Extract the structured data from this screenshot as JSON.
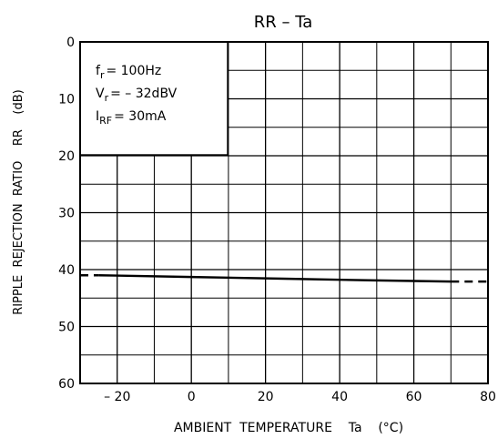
{
  "chart_data": {
    "type": "line",
    "title": "RR  –  Ta",
    "xlabel": "AMBIENT  TEMPERATURE    Ta    (°C)",
    "ylabel": "RIPPLE  REJECTION  RATIO    RR    (dB)",
    "xlim": [
      -30,
      80
    ],
    "ylim": [
      60,
      0
    ],
    "y_inverted": true,
    "grid": true,
    "x_ticks": [
      -20,
      0,
      20,
      40,
      60,
      80
    ],
    "x_tick_labels": [
      "– 20",
      "0",
      "20",
      "40",
      "60",
      "80"
    ],
    "y_ticks": [
      0,
      10,
      20,
      30,
      40,
      50,
      60
    ],
    "y_tick_labels": [
      "0",
      "10",
      "20",
      "30",
      "40",
      "50",
      "60"
    ],
    "conditions": [
      {
        "symbol": "f",
        "sub": "r",
        "value": "= 100Hz"
      },
      {
        "symbol": "V",
        "sub": "r",
        "value": "= – 32dBV"
      },
      {
        "symbol": "I",
        "sub": "RF",
        "value": "= 30mA"
      }
    ],
    "series": [
      {
        "name": "",
        "color": "#000000",
        "x": [
          -30,
          -25,
          0,
          25,
          50,
          70,
          80
        ],
        "y": [
          41.0,
          41.0,
          41.3,
          41.6,
          41.9,
          42.1,
          42.1
        ],
        "dashed_x_ranges": [
          [
            -30,
            -25
          ],
          [
            70,
            80
          ]
        ]
      }
    ]
  }
}
